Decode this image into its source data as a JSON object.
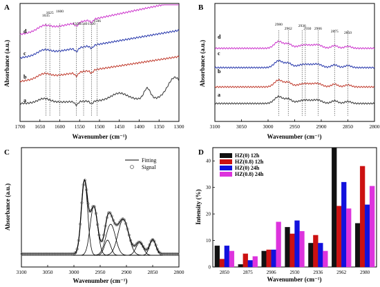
{
  "panels": [
    {
      "letter": "A",
      "xlabel": "Wavenumber (cm⁻¹)",
      "ylabel": "Absorbance (a.u.)",
      "xticks": [
        "1700",
        "1650",
        "1600",
        "1550",
        "1500",
        "1450",
        "1400",
        "1350",
        "1300"
      ],
      "curve_letters": [
        "d",
        "c",
        "b",
        "a"
      ],
      "peak_labels": [
        "1635",
        "1625",
        "1600",
        "1558",
        "1540",
        "1520",
        "1506"
      ]
    },
    {
      "letter": "B",
      "xlabel": "Wavenumber (cm⁻¹)",
      "ylabel": "Absorbance (a.u.)",
      "xticks": [
        "3100",
        "3050",
        "3000",
        "2950",
        "2900",
        "2850",
        "2800"
      ],
      "curve_letters": [
        "d",
        "c",
        "b",
        "a"
      ],
      "peak_labels": [
        "2980",
        "2962",
        "2936",
        "2930",
        "2906",
        "2875",
        "2850"
      ]
    },
    {
      "letter": "C",
      "xlabel": "Wavenumber (cm⁻¹)",
      "ylabel": "Absorbance (a.u.)",
      "xticks": [
        "3100",
        "3050",
        "3000",
        "2950",
        "2900",
        "2850",
        "2800"
      ],
      "legend": [
        "Fitting",
        "Signal"
      ]
    },
    {
      "letter": "D",
      "xlabel": "Wavenumber (cm⁻¹)",
      "ylabel": "Intensity (%)",
      "yticks": [
        "0",
        "10",
        "20",
        "30",
        "40"
      ]
    }
  ],
  "chart_data": [
    {
      "panel": "A",
      "type": "line",
      "x_range": [
        1700,
        1300
      ],
      "x_reversed": true,
      "peaks": [
        1635,
        1625,
        1600,
        1558,
        1540,
        1520,
        1506
      ],
      "series": [
        {
          "name": "a",
          "color": "#333333"
        },
        {
          "name": "b",
          "color": "#c0392b"
        },
        {
          "name": "c",
          "color": "#2233aa"
        },
        {
          "name": "d",
          "color": "#cc33cc"
        }
      ]
    },
    {
      "panel": "B",
      "type": "line",
      "x_range": [
        3100,
        2800
      ],
      "x_reversed": true,
      "peaks": [
        2980,
        2962,
        2936,
        2930,
        2906,
        2875,
        2850
      ],
      "series": [
        {
          "name": "a",
          "color": "#333333"
        },
        {
          "name": "b",
          "color": "#c0392b"
        },
        {
          "name": "c",
          "color": "#2233aa"
        },
        {
          "name": "d",
          "color": "#cc33cc"
        }
      ]
    },
    {
      "panel": "C",
      "type": "line",
      "x_range": [
        3100,
        2800
      ],
      "x_reversed": true,
      "components": [
        2980,
        2962,
        2936,
        2930,
        2906,
        2875,
        2850
      ],
      "series": [
        {
          "name": "Fitting"
        },
        {
          "name": "Signal"
        }
      ]
    },
    {
      "panel": "D",
      "type": "bar",
      "ylim": [
        0,
        45
      ],
      "categories": [
        "2850",
        "2875",
        "2906",
        "2930",
        "2936",
        "2962",
        "2980"
      ],
      "series": [
        {
          "name": "HZ(0)  12h",
          "color": "#111111",
          "values": [
            8,
            1,
            6,
            15,
            9,
            45,
            16.5
          ]
        },
        {
          "name": "HZ(0.8) 12h",
          "color": "#cc1111",
          "values": [
            3,
            5,
            6.5,
            12.5,
            12,
            23,
            38
          ]
        },
        {
          "name": "HZ(0)  24h",
          "color": "#1111dd",
          "values": [
            8,
            2.5,
            6.5,
            17.5,
            9,
            32,
            23.5
          ]
        },
        {
          "name": "HZ(0.8) 24h",
          "color": "#dd33dd",
          "values": [
            6,
            4,
            17,
            13.5,
            6,
            22,
            30.5
          ]
        }
      ]
    }
  ]
}
